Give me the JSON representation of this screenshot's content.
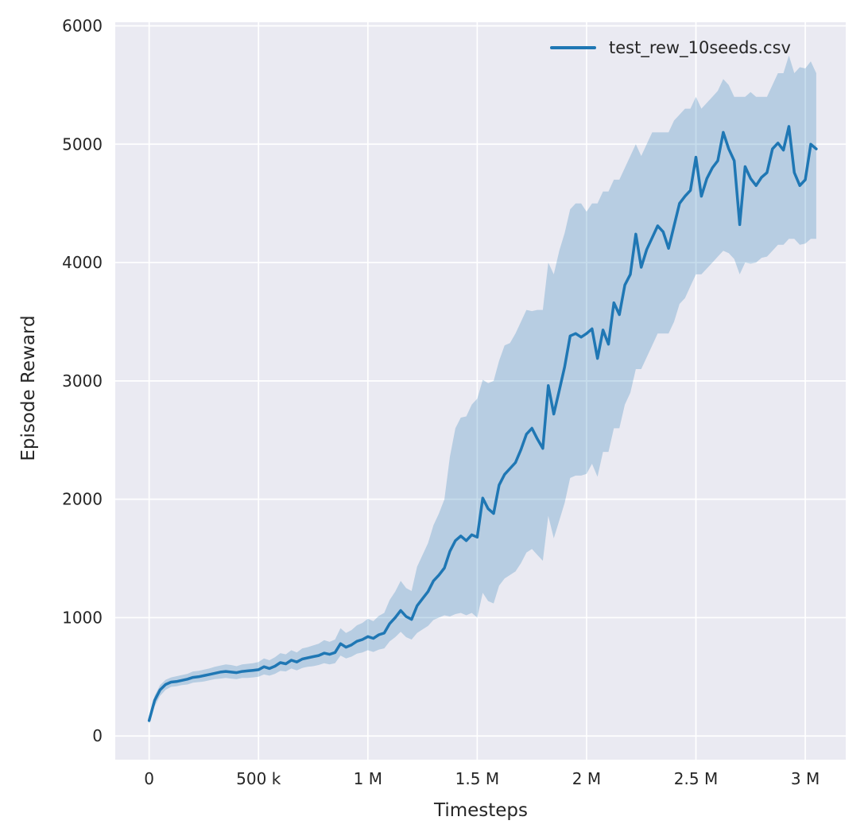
{
  "figure": {
    "background": "#ffffff",
    "axes_background": "#eaeaf2",
    "grid_color": "#ffffff",
    "text_color": "#262626"
  },
  "chart_data": {
    "type": "line",
    "title": "",
    "xlabel": "Timesteps",
    "ylabel": "Episode Reward",
    "grid": true,
    "legend_position": "upper right",
    "legend": [
      {
        "label": "test_rew_10seeds.csv",
        "color": "#1f77b4"
      }
    ],
    "xlim": [
      -155000,
      3185000
    ],
    "ylim": [
      -200,
      6030
    ],
    "xticks": [
      {
        "value": 0,
        "label": "0"
      },
      {
        "value": 500000,
        "label": "500 k"
      },
      {
        "value": 1000000,
        "label": "1 M"
      },
      {
        "value": 1500000,
        "label": "1.5 M"
      },
      {
        "value": 2000000,
        "label": "2 M"
      },
      {
        "value": 2500000,
        "label": "2.5 M"
      },
      {
        "value": 3000000,
        "label": "3 M"
      }
    ],
    "yticks": [
      {
        "value": 0,
        "label": "0"
      },
      {
        "value": 1000,
        "label": "1000"
      },
      {
        "value": 2000,
        "label": "2000"
      },
      {
        "value": 3000,
        "label": "3000"
      },
      {
        "value": 4000,
        "label": "4000"
      },
      {
        "value": 5000,
        "label": "5000"
      },
      {
        "value": 6000,
        "label": "6000"
      }
    ],
    "series": [
      {
        "name": "test_rew_10seeds.csv",
        "color": "#1f77b4",
        "band_opacity": 0.25,
        "x": [
          0,
          25000,
          50000,
          75000,
          100000,
          125000,
          150000,
          175000,
          200000,
          225000,
          250000,
          275000,
          300000,
          325000,
          350000,
          375000,
          400000,
          425000,
          450000,
          475000,
          500000,
          525000,
          550000,
          575000,
          600000,
          625000,
          650000,
          675000,
          700000,
          725000,
          750000,
          775000,
          800000,
          825000,
          850000,
          875000,
          900000,
          925000,
          950000,
          975000,
          1000000,
          1025000,
          1050000,
          1075000,
          1100000,
          1125000,
          1150000,
          1175000,
          1200000,
          1225000,
          1250000,
          1275000,
          1300000,
          1325000,
          1350000,
          1375000,
          1400000,
          1425000,
          1450000,
          1475000,
          1500000,
          1525000,
          1550000,
          1575000,
          1600000,
          1625000,
          1650000,
          1675000,
          1700000,
          1725000,
          1750000,
          1775000,
          1800000,
          1825000,
          1850000,
          1875000,
          1900000,
          1925000,
          1950000,
          1975000,
          2000000,
          2025000,
          2050000,
          2075000,
          2100000,
          2125000,
          2150000,
          2175000,
          2200000,
          2225000,
          2250000,
          2275000,
          2300000,
          2325000,
          2350000,
          2375000,
          2400000,
          2425000,
          2450000,
          2475000,
          2500000,
          2525000,
          2550000,
          2575000,
          2600000,
          2625000,
          2650000,
          2675000,
          2700000,
          2725000,
          2750000,
          2775000,
          2800000,
          2825000,
          2850000,
          2875000,
          2900000,
          2925000,
          2950000,
          2975000,
          3000000,
          3025000,
          3050000
        ],
        "mean": [
          130,
          300,
          390,
          435,
          455,
          460,
          470,
          480,
          495,
          500,
          510,
          520,
          530,
          540,
          545,
          540,
          535,
          545,
          550,
          555,
          560,
          585,
          570,
          590,
          620,
          610,
          640,
          625,
          650,
          660,
          670,
          680,
          700,
          690,
          705,
          780,
          750,
          770,
          800,
          815,
          840,
          825,
          855,
          870,
          950,
          1000,
          1060,
          1010,
          985,
          1100,
          1160,
          1220,
          1310,
          1360,
          1420,
          1560,
          1650,
          1690,
          1650,
          1700,
          1680,
          2010,
          1920,
          1880,
          2120,
          2210,
          2260,
          2310,
          2420,
          2550,
          2600,
          2510,
          2430,
          2960,
          2720,
          2920,
          3120,
          3380,
          3400,
          3370,
          3400,
          3440,
          3190,
          3430,
          3310,
          3660,
          3560,
          3810,
          3900,
          4240,
          3960,
          4110,
          4210,
          4310,
          4260,
          4120,
          4310,
          4500,
          4560,
          4610,
          4890,
          4560,
          4710,
          4800,
          4860,
          5100,
          4960,
          4860,
          4320,
          4810,
          4710,
          4650,
          4720,
          4760,
          4960,
          5010,
          4950,
          5150,
          4760,
          4650,
          4700,
          5000,
          4960
        ],
        "lower": [
          100,
          250,
          340,
          390,
          415,
          420,
          430,
          435,
          450,
          455,
          460,
          470,
          480,
          485,
          490,
          485,
          480,
          490,
          490,
          495,
          500,
          520,
          510,
          525,
          550,
          545,
          570,
          555,
          575,
          585,
          590,
          600,
          615,
          605,
          615,
          680,
          655,
          670,
          695,
          705,
          725,
          710,
          730,
          740,
          800,
          835,
          880,
          835,
          815,
          870,
          900,
          930,
          980,
          1000,
          1020,
          1010,
          1030,
          1040,
          1020,
          1040,
          1000,
          1210,
          1140,
          1120,
          1270,
          1330,
          1360,
          1390,
          1460,
          1550,
          1580,
          1530,
          1480,
          1860,
          1670,
          1820,
          1970,
          2180,
          2200,
          2200,
          2215,
          2300,
          2190,
          2400,
          2400,
          2600,
          2600,
          2800,
          2900,
          3100,
          3100,
          3200,
          3300,
          3400,
          3400,
          3400,
          3500,
          3650,
          3700,
          3800,
          3900,
          3900,
          3950,
          4000,
          4050,
          4100,
          4080,
          4030,
          3900,
          4000,
          3990,
          4000,
          4040,
          4050,
          4100,
          4150,
          4150,
          4200,
          4200,
          4150,
          4160,
          4200,
          4200
        ],
        "upper": [
          160,
          340,
          430,
          475,
          495,
          505,
          515,
          525,
          545,
          550,
          560,
          570,
          585,
          595,
          605,
          600,
          590,
          605,
          610,
          615,
          625,
          655,
          640,
          665,
          700,
          690,
          725,
          705,
          740,
          750,
          765,
          780,
          810,
          795,
          815,
          910,
          870,
          895,
          935,
          955,
          990,
          970,
          1015,
          1040,
          1150,
          1220,
          1310,
          1250,
          1225,
          1430,
          1530,
          1630,
          1780,
          1880,
          2000,
          2360,
          2600,
          2690,
          2700,
          2800,
          2850,
          3010,
          2980,
          3000,
          3170,
          3300,
          3320,
          3400,
          3500,
          3600,
          3590,
          3600,
          3600,
          4000,
          3900,
          4100,
          4250,
          4450,
          4500,
          4500,
          4430,
          4500,
          4500,
          4600,
          4600,
          4700,
          4700,
          4800,
          4900,
          5000,
          4900,
          5000,
          5100,
          5100,
          5100,
          5100,
          5200,
          5250,
          5300,
          5300,
          5400,
          5300,
          5350,
          5400,
          5450,
          5550,
          5500,
          5400,
          5400,
          5400,
          5440,
          5400,
          5400,
          5400,
          5500,
          5600,
          5600,
          5750,
          5600,
          5650,
          5640,
          5700,
          5600
        ]
      }
    ]
  }
}
